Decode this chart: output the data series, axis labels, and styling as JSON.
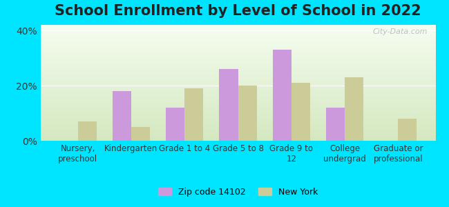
{
  "title": "School Enrollment by Level of School in 2022",
  "categories": [
    "Nursery,\npreschool",
    "Kindergarten",
    "Grade 1 to 4",
    "Grade 5 to 8",
    "Grade 9 to\n12",
    "College\nundergrad",
    "Graduate or\nprofessional"
  ],
  "zip_values": [
    0,
    18,
    12,
    26,
    33,
    12,
    0
  ],
  "ny_values": [
    7,
    5,
    19,
    20,
    21,
    23,
    8
  ],
  "zip_color": "#cc99dd",
  "ny_color": "#cccc99",
  "background_outer": "#00e5ff",
  "background_inner_top": "#f5fdf0",
  "background_inner_bottom": "#d4e8c0",
  "ylim": [
    0,
    42
  ],
  "yticks": [
    0,
    20,
    40
  ],
  "ytick_labels": [
    "0%",
    "20%",
    "40%"
  ],
  "zip_label": "Zip code 14102",
  "ny_label": "New York",
  "title_fontsize": 15,
  "watermark": "City-Data.com"
}
